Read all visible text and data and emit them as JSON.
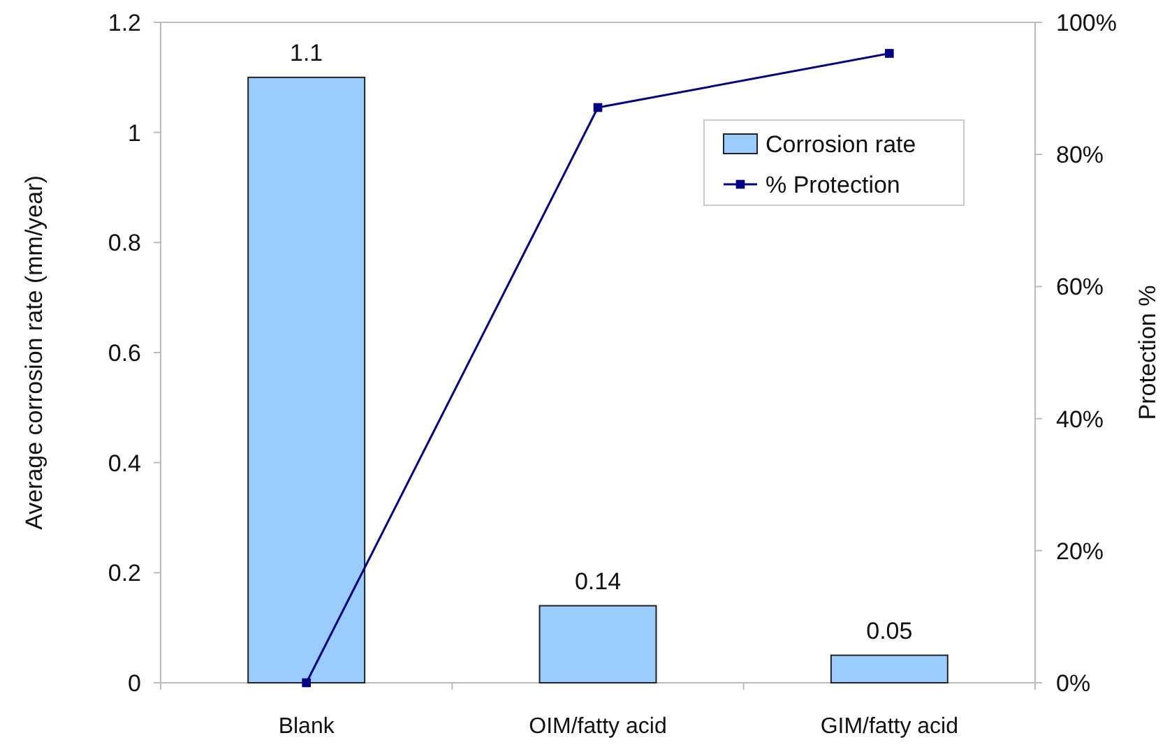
{
  "chart_data": {
    "type": "bar",
    "categories": [
      "Blank",
      "OIM/fatty acid",
      "GIM/fatty acid"
    ],
    "ylabel": "Average corrosion rate (mm/year)",
    "y2label": "Protection %",
    "series": [
      {
        "name": "Corrosion rate",
        "color": "#99ccff",
        "values": [
          1.1,
          0.14,
          0.05
        ],
        "value_labels": [
          "1.1",
          "0.14",
          "0.05"
        ]
      },
      {
        "name": "% Protection",
        "type": "line",
        "axis": "y2",
        "color": "#000080",
        "values": [
          0,
          87.1,
          95.3
        ]
      }
    ],
    "ylim": [
      0,
      1.2
    ],
    "yticks": [
      0,
      0.2,
      0.4,
      0.6,
      0.8,
      1,
      1.2
    ],
    "y2lim": [
      0,
      100
    ],
    "y2ticks": [
      {
        "value": 0,
        "label": "0%"
      },
      {
        "value": 20,
        "label": "20%"
      },
      {
        "value": 40,
        "label": "40%"
      },
      {
        "value": 60,
        "label": "60%"
      },
      {
        "value": 80,
        "label": "80%"
      },
      {
        "value": 100,
        "label": "100%"
      }
    ],
    "legend": "top right",
    "marker": "square",
    "grid": false
  }
}
